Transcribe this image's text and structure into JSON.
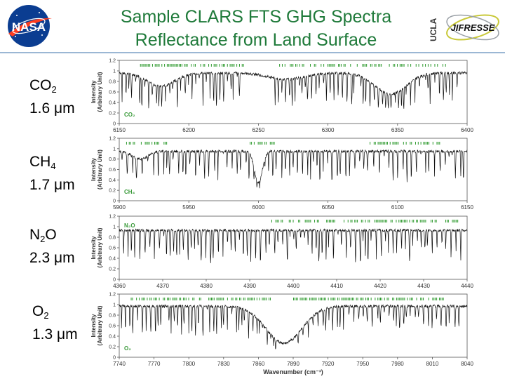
{
  "header": {
    "title_line1": "Sample CLARS FTS GHG Spectra",
    "title_line2": "Reflectance from Land Surface",
    "ucla_text": "UCLA",
    "jifresse_text": "JIFRESSE",
    "nasa_text": "NASA"
  },
  "colors": {
    "title": "#1f7a3a",
    "spectrum": "#111111",
    "markers": "#2e9a2e",
    "panel_label": "#3a9a3a",
    "axis_text": "#333333"
  },
  "species_labels": [
    {
      "formula": "CO",
      "sub": "2",
      "band": "1.6 μm"
    },
    {
      "formula": "CH",
      "sub": "4",
      "band": "1.7 μm"
    },
    {
      "formula": "N",
      "sub": "2",
      "formula_tail": "O",
      "band": "2.3 μm"
    },
    {
      "formula": "O",
      "sub": "2",
      "band": "1.3 μm"
    }
  ],
  "chart_data": [
    {
      "type": "line",
      "panel_label": "CO₂",
      "panel_label_position": "bottom-left",
      "ylabel": "Intensity (Arbitrary Unit)",
      "xlabel": "",
      "xlim": [
        6150,
        6400
      ],
      "ylim": [
        0,
        1.2
      ],
      "yticks": [
        "0",
        "0.2",
        "0.4",
        "0.6",
        "0.8",
        "1",
        "1.2"
      ],
      "xticks": [
        "6150",
        "6200",
        "6250",
        "6300",
        "6350",
        "6400"
      ],
      "xtick_values": [
        6150,
        6200,
        6250,
        6300,
        6350,
        6400
      ],
      "grid": false,
      "continuum": 0.96,
      "broad_features": [
        {
          "center": 6180,
          "width": 14,
          "depth": 0.25
        },
        {
          "center": 6270,
          "width": 18,
          "depth": 0.12
        },
        {
          "center": 6345,
          "width": 16,
          "depth": 0.4
        }
      ],
      "line_clusters": [
        {
          "start": 6152,
          "end": 6238,
          "spacing": 2.4,
          "depth": 0.72
        },
        {
          "start": 6262,
          "end": 6395,
          "spacing": 2.5,
          "depth": 0.6
        }
      ],
      "marker_ranges": [
        [
          6165,
          6240
        ],
        [
          6265,
          6385
        ]
      ]
    },
    {
      "type": "line",
      "panel_label": "CH₄",
      "panel_label_position": "bottom-left",
      "ylabel": "Intensity (Arbitrary Unit)",
      "xlabel": "",
      "xlim": [
        5900,
        6150
      ],
      "ylim": [
        0,
        1.2
      ],
      "yticks": [
        "0",
        "0.2",
        "0.4",
        "0.6",
        "0.8",
        "1",
        "1.2"
      ],
      "xticks": [
        "5900",
        "5950",
        "6000",
        "6050",
        "6100",
        "6150"
      ],
      "xtick_values": [
        5900,
        5950,
        6000,
        6050,
        6100,
        6150
      ],
      "grid": false,
      "continuum": 0.95,
      "broad_features": [
        {
          "center": 6000,
          "width": 4,
          "depth": 0.6
        },
        {
          "center": 5915,
          "width": 8,
          "depth": 0.15
        }
      ],
      "line_clusters": [
        {
          "start": 5902,
          "end": 6148,
          "spacing": 3.2,
          "depth": 0.6
        }
      ],
      "marker_ranges": [
        [
          5905,
          5935
        ],
        [
          5990,
          6012
        ],
        [
          6080,
          6130
        ]
      ]
    },
    {
      "type": "line",
      "panel_label": "N₂O",
      "panel_label_position": "top-left",
      "ylabel": "Intensity (Arbitrary Unit)",
      "xlabel": "",
      "xlim": [
        4360,
        4440
      ],
      "ylim": [
        0,
        1.2
      ],
      "yticks": [
        "0",
        "0.2",
        "0.4",
        "0.6",
        "0.8",
        "1",
        "1.2"
      ],
      "xticks": [
        "4360",
        "4370",
        "4380",
        "4390",
        "4400",
        "4410",
        "4420",
        "4430",
        "4440"
      ],
      "xtick_values": [
        4360,
        4370,
        4380,
        4390,
        4400,
        4410,
        4420,
        4430,
        4440
      ],
      "grid": false,
      "continuum": 0.93,
      "broad_features": [],
      "line_clusters": [
        {
          "start": 4361,
          "end": 4439,
          "spacing": 0.9,
          "depth": 0.7
        }
      ],
      "marker_ranges": [
        [
          4395,
          4438
        ]
      ]
    },
    {
      "type": "line",
      "panel_label": "O₂",
      "panel_label_position": "bottom-left",
      "ylabel": "Intensity (Arbitrary Unit)",
      "xlabel": "Wavenumber (cm⁻¹)",
      "xlim": [
        7740,
        8040
      ],
      "ylim": [
        0,
        1.2
      ],
      "yticks": [
        "0",
        "0.2",
        "0.4",
        "0.6",
        "0.8",
        "1",
        "1.2"
      ],
      "xticks": [
        "7740",
        "7770",
        "7800",
        "7830",
        "7860",
        "7890",
        "7920",
        "7950",
        "7980",
        "8010",
        "8040"
      ],
      "xtick_values": [
        7740,
        7770,
        7800,
        7830,
        7860,
        7890,
        7920,
        7950,
        7980,
        8010,
        8040
      ],
      "grid": false,
      "continuum": 0.97,
      "broad_features": [
        {
          "center": 7882,
          "width": 22,
          "depth": 0.7
        }
      ],
      "line_clusters": [
        {
          "start": 7742,
          "end": 7875,
          "spacing": 3.0,
          "depth": 0.55
        },
        {
          "start": 7890,
          "end": 8035,
          "spacing": 3.6,
          "depth": 0.4
        }
      ],
      "marker_ranges": [
        [
          7750,
          7870
        ],
        [
          7890,
          8020
        ]
      ]
    }
  ]
}
